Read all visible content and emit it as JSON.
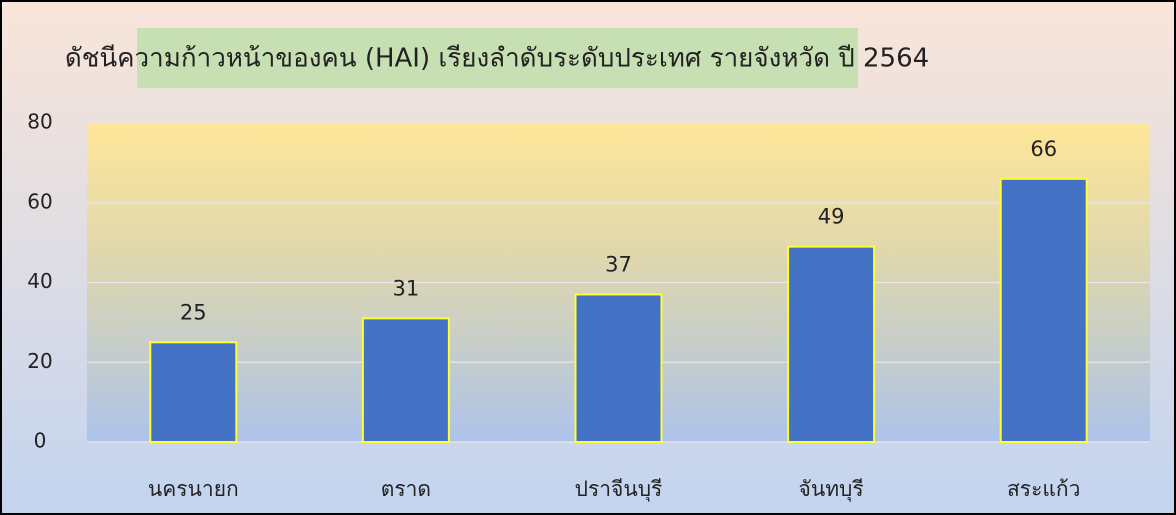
{
  "chart_data": {
    "type": "bar",
    "title": "ดัชนีความก้าวหน้าของคน (HAI) เรียงลำดับระดับประเทศ รายจังหวัด ปี 2564",
    "categories": [
      "นครนายก",
      "ตราด",
      "ปราจีนบุรี",
      "จันทบุรี",
      "สระแก้ว"
    ],
    "values": [
      25,
      31,
      37,
      49,
      66
    ],
    "color": "#4472c4",
    "ylim": [
      0,
      80
    ],
    "yticks": [
      0,
      20,
      40,
      60,
      80
    ],
    "grid": true
  }
}
